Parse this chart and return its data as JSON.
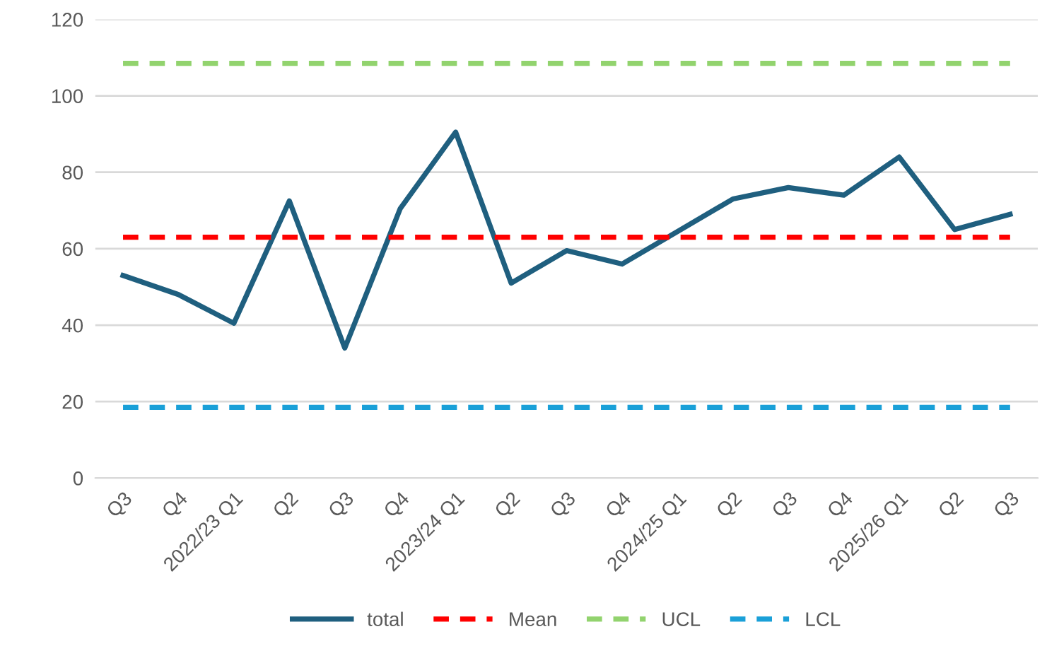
{
  "chart_data": {
    "type": "line",
    "categories": [
      "Q3",
      "Q4",
      "2022/23 Q1",
      "Q2",
      "Q3",
      "Q4",
      "2023/24 Q1",
      "Q2",
      "Q3",
      "Q4",
      "2024/25 Q1",
      "Q2",
      "Q3",
      "Q4",
      "2025/26 Q1",
      "Q2",
      "Q3"
    ],
    "series": [
      {
        "name": "total",
        "color": "#1f5f7f",
        "line_style": "solid",
        "values": [
          53,
          48,
          40.5,
          72.5,
          34,
          70.5,
          90.5,
          51,
          59.5,
          56,
          64.5,
          73,
          76,
          74,
          84,
          65,
          69
        ]
      },
      {
        "name": "Mean",
        "color": "#ff0000",
        "line_style": "dashed",
        "values": [
          63,
          63,
          63,
          63,
          63,
          63,
          63,
          63,
          63,
          63,
          63,
          63,
          63,
          63,
          63,
          63,
          63
        ]
      },
      {
        "name": "UCL",
        "color": "#92d36e",
        "line_style": "dashed",
        "values": [
          108.5,
          108.5,
          108.5,
          108.5,
          108.5,
          108.5,
          108.5,
          108.5,
          108.5,
          108.5,
          108.5,
          108.5,
          108.5,
          108.5,
          108.5,
          108.5,
          108.5
        ]
      },
      {
        "name": "LCL",
        "color": "#1aa0d8",
        "line_style": "dashed",
        "values": [
          18.5,
          18.5,
          18.5,
          18.5,
          18.5,
          18.5,
          18.5,
          18.5,
          18.5,
          18.5,
          18.5,
          18.5,
          18.5,
          18.5,
          18.5,
          18.5,
          18.5
        ]
      }
    ],
    "ylim": [
      0,
      120
    ],
    "yticks": [
      0,
      20,
      40,
      60,
      80,
      100,
      120
    ],
    "grid": "y",
    "legend": "bottom",
    "marker": "none"
  }
}
